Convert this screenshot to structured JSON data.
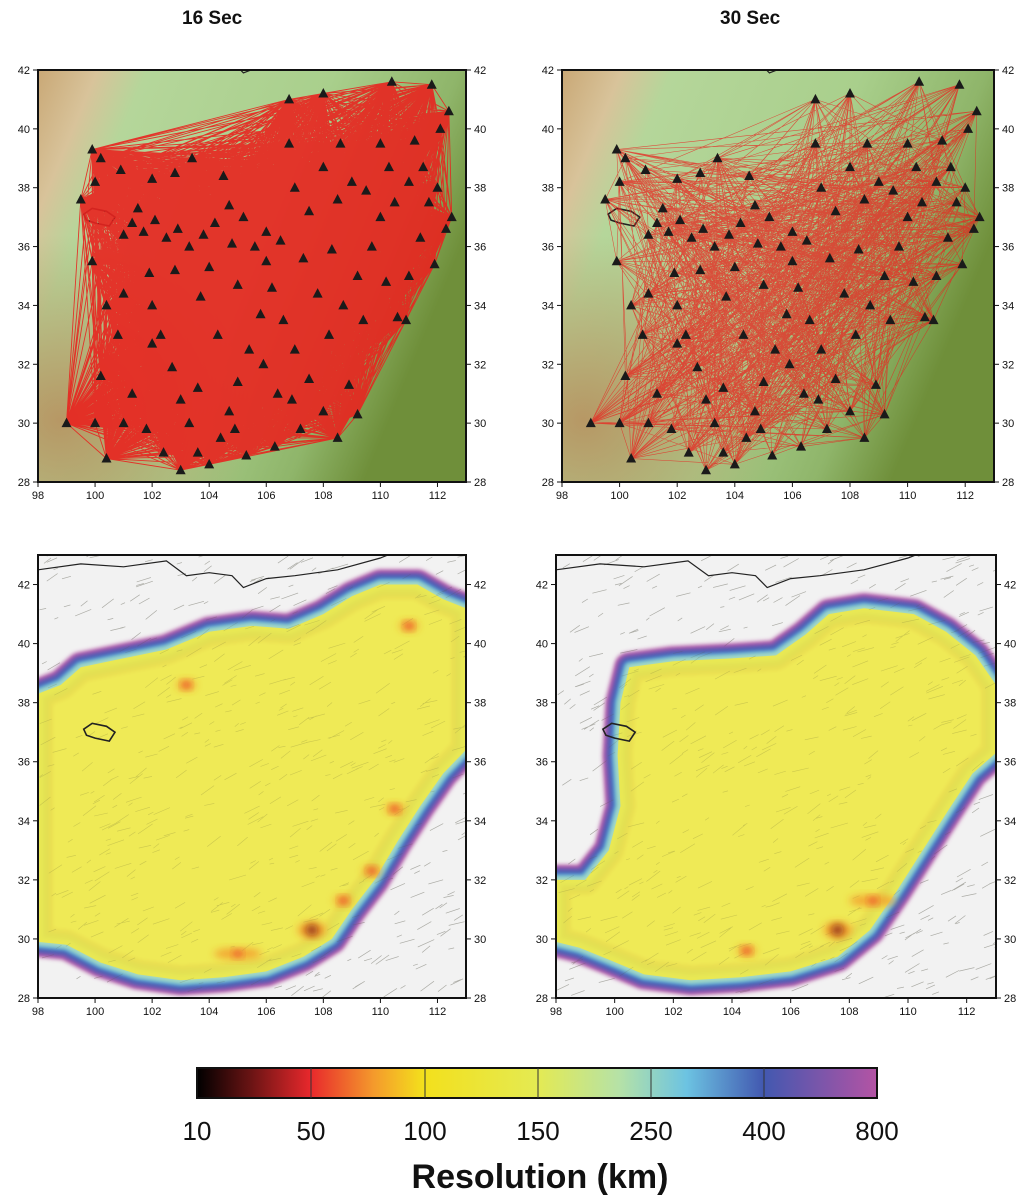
{
  "columns": [
    {
      "title": "16 Sec"
    },
    {
      "title": "30 Sec"
    }
  ],
  "map_axes": {
    "top_row": {
      "lon_ticks": [
        "98",
        "100",
        "102",
        "104",
        "106",
        "108",
        "110",
        "112"
      ],
      "lat_ticks": [
        "28",
        "30",
        "32",
        "34",
        "36",
        "38",
        "40",
        "42"
      ],
      "lon_range": [
        98,
        113
      ],
      "lat_range": [
        28,
        42
      ]
    },
    "bottom_row": {
      "lon_ticks": [
        "98",
        "100",
        "102",
        "104",
        "106",
        "108",
        "110",
        "112"
      ],
      "lat_ticks": [
        "28",
        "30",
        "32",
        "34",
        "36",
        "38",
        "40",
        "42"
      ],
      "lon_range": [
        98,
        113
      ],
      "lat_range": [
        28,
        43
      ]
    }
  },
  "colors": {
    "ray_path": "#e8231f",
    "station": "#1a1a1a",
    "terrain_low": "#6f8f3a",
    "terrain_mid": "#b5d69a",
    "terrain_high": "#c9a876",
    "border": "#222222"
  },
  "stations": [
    [
      99.9,
      39.3
    ],
    [
      100.2,
      39.0
    ],
    [
      99.5,
      37.6
    ],
    [
      100.0,
      38.2
    ],
    [
      100.9,
      38.6
    ],
    [
      101.5,
      37.3
    ],
    [
      102.0,
      38.3
    ],
    [
      102.8,
      38.5
    ],
    [
      103.4,
      39.0
    ],
    [
      99.9,
      35.5
    ],
    [
      101.0,
      36.4
    ],
    [
      101.3,
      36.8
    ],
    [
      101.7,
      36.5
    ],
    [
      102.1,
      36.9
    ],
    [
      102.5,
      36.3
    ],
    [
      102.9,
      36.6
    ],
    [
      103.3,
      36.0
    ],
    [
      103.8,
      36.4
    ],
    [
      104.2,
      36.8
    ],
    [
      104.7,
      37.4
    ],
    [
      105.2,
      37.0
    ],
    [
      105.6,
      36.0
    ],
    [
      106.0,
      36.5
    ],
    [
      106.5,
      36.2
    ],
    [
      107.0,
      38.0
    ],
    [
      107.5,
      37.2
    ],
    [
      108.0,
      38.7
    ],
    [
      108.5,
      37.6
    ],
    [
      109.0,
      38.2
    ],
    [
      109.5,
      37.9
    ],
    [
      110.0,
      37.0
    ],
    [
      110.5,
      37.5
    ],
    [
      111.0,
      38.2
    ],
    [
      111.5,
      38.7
    ],
    [
      112.0,
      38.0
    ],
    [
      112.5,
      37.0
    ],
    [
      106.8,
      41.0
    ],
    [
      108.0,
      41.2
    ],
    [
      110.4,
      41.6
    ],
    [
      111.8,
      41.5
    ],
    [
      112.4,
      40.6
    ],
    [
      112.1,
      40.0
    ],
    [
      111.2,
      39.6
    ],
    [
      110.0,
      39.5
    ],
    [
      108.6,
      39.5
    ],
    [
      106.8,
      39.5
    ],
    [
      104.5,
      38.4
    ],
    [
      100.8,
      33.0
    ],
    [
      101.0,
      34.4
    ],
    [
      101.3,
      31.0
    ],
    [
      101.0,
      30.0
    ],
    [
      100.0,
      30.0
    ],
    [
      99.0,
      30.0
    ],
    [
      100.2,
      31.6
    ],
    [
      102.0,
      34.0
    ],
    [
      102.3,
      33.0
    ],
    [
      102.7,
      31.9
    ],
    [
      103.0,
      30.8
    ],
    [
      103.3,
      30.0
    ],
    [
      103.6,
      29.0
    ],
    [
      104.0,
      28.6
    ],
    [
      104.4,
      29.5
    ],
    [
      104.7,
      30.4
    ],
    [
      105.0,
      31.4
    ],
    [
      105.4,
      32.5
    ],
    [
      105.8,
      33.7
    ],
    [
      106.2,
      34.6
    ],
    [
      106.6,
      33.5
    ],
    [
      107.0,
      32.5
    ],
    [
      107.5,
      31.5
    ],
    [
      108.0,
      30.4
    ],
    [
      108.5,
      29.5
    ],
    [
      108.2,
      33.0
    ],
    [
      108.7,
      34.0
    ],
    [
      109.2,
      35.0
    ],
    [
      109.7,
      36.0
    ],
    [
      110.2,
      34.8
    ],
    [
      110.6,
      33.6
    ],
    [
      111.0,
      35.0
    ],
    [
      111.4,
      36.3
    ],
    [
      111.9,
      35.4
    ],
    [
      112.3,
      36.6
    ],
    [
      102.4,
      29.0
    ],
    [
      103.0,
      28.4
    ],
    [
      105.3,
      28.9
    ],
    [
      106.3,
      29.2
    ],
    [
      107.2,
      29.8
    ],
    [
      100.4,
      28.8
    ],
    [
      101.8,
      29.8
    ],
    [
      102.8,
      35.2
    ],
    [
      104.0,
      35.3
    ],
    [
      105.0,
      34.7
    ],
    [
      106.0,
      35.5
    ],
    [
      107.3,
      35.6
    ],
    [
      108.3,
      35.9
    ],
    [
      109.4,
      33.5
    ],
    [
      104.3,
      33.0
    ],
    [
      103.6,
      31.2
    ],
    [
      106.9,
      30.8
    ],
    [
      109.2,
      30.3
    ],
    [
      110.9,
      33.5
    ],
    [
      104.8,
      36.1
    ],
    [
      103.7,
      34.3
    ],
    [
      106.4,
      31.0
    ],
    [
      101.9,
      35.1
    ],
    [
      100.4,
      34.0
    ],
    [
      107.8,
      34.4
    ],
    [
      110.3,
      38.7
    ],
    [
      111.7,
      37.5
    ],
    [
      105.9,
      32.0
    ],
    [
      104.9,
      29.8
    ],
    [
      108.9,
      31.3
    ],
    [
      102.0,
      32.7
    ]
  ],
  "resolution_hotspots": {
    "sec16": [
      [
        107.6,
        30.3
      ],
      [
        108.7,
        31.3
      ],
      [
        105.0,
        29.5
      ],
      [
        103.2,
        38.6
      ],
      [
        110.5,
        34.4
      ],
      [
        111.0,
        40.6
      ],
      [
        109.7,
        32.3
      ]
    ],
    "sec30": [
      [
        107.6,
        30.3
      ],
      [
        104.5,
        29.6
      ],
      [
        108.8,
        31.3
      ]
    ]
  },
  "colorbar": {
    "title": "Resolution (km)",
    "tick_labels": [
      "10",
      "50",
      "100",
      "150",
      "250",
      "400",
      "800"
    ],
    "stops": [
      "#000000",
      "#e8282c",
      "#f2e21a",
      "#e6ea4f",
      "#6cc3e2",
      "#4656ad",
      "#b453a4"
    ]
  }
}
